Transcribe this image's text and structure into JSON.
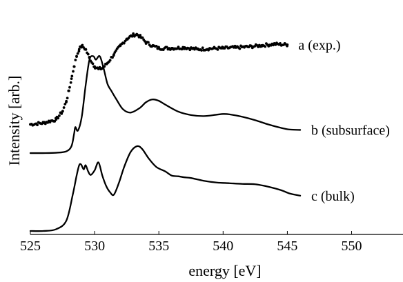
{
  "chart_data": {
    "type": "line",
    "title": "",
    "xlabel": "energy [eV]",
    "ylabel": "Intensity [arb.]",
    "xlim": [
      525,
      554
    ],
    "x_ticks": [
      525,
      530,
      535,
      540,
      545,
      550
    ],
    "x_tick_labels": [
      "525",
      "530",
      "535",
      "540",
      "545",
      "550"
    ],
    "y_ticks_shown": false,
    "grid": false,
    "legend": "none",
    "series": [
      {
        "label": "a (exp.)",
        "style": "dots",
        "color": "#000000",
        "x": [
          525.0,
          526.0,
          527.0,
          527.5,
          527.8,
          528.0,
          528.2,
          528.4,
          528.6,
          528.8,
          529.0,
          529.3,
          529.6,
          530.0,
          530.3,
          530.6,
          531.0,
          531.5,
          532.0,
          532.5,
          533.0,
          533.3,
          533.6,
          534.0,
          534.5,
          535.0,
          536.0,
          537.0,
          538.0,
          539.0,
          540.0,
          541.0,
          542.0,
          543.0,
          544.0,
          545.0
        ],
        "y": [
          3.08,
          3.12,
          3.22,
          3.45,
          3.75,
          4.05,
          4.4,
          4.75,
          5.05,
          5.25,
          5.35,
          5.25,
          5.0,
          4.75,
          4.68,
          4.7,
          4.85,
          5.1,
          5.35,
          5.55,
          5.66,
          5.68,
          5.6,
          5.45,
          5.35,
          5.28,
          5.28,
          5.3,
          5.25,
          5.27,
          5.28,
          5.3,
          5.32,
          5.36,
          5.4,
          5.38
        ]
      },
      {
        "label": "b (subsurface)",
        "style": "line",
        "color": "#000000",
        "x": [
          525.0,
          526.0,
          527.0,
          527.8,
          528.2,
          528.4,
          528.5,
          528.7,
          529.0,
          529.3,
          529.6,
          529.9,
          530.1,
          530.4,
          530.7,
          531.0,
          531.3,
          531.7,
          532.2,
          532.8,
          533.5,
          534.0,
          534.5,
          535.0,
          535.5,
          536.5,
          537.5,
          538.5,
          539.5,
          540.0,
          540.5,
          541.5,
          542.5,
          543.5,
          544.5,
          545.2,
          546.0
        ],
        "y": [
          2.25,
          2.25,
          2.26,
          2.3,
          2.45,
          2.8,
          3.0,
          2.9,
          3.3,
          4.2,
          4.95,
          5.05,
          4.95,
          5.05,
          4.7,
          4.25,
          4.05,
          3.8,
          3.52,
          3.42,
          3.55,
          3.72,
          3.8,
          3.76,
          3.65,
          3.45,
          3.35,
          3.32,
          3.36,
          3.38,
          3.37,
          3.3,
          3.2,
          3.08,
          2.98,
          2.93,
          2.92
        ]
      },
      {
        "label": "c (bulk)",
        "style": "line",
        "color": "#000000",
        "x": [
          525.0,
          526.0,
          527.0,
          527.8,
          528.3,
          528.6,
          528.8,
          528.95,
          529.15,
          529.3,
          529.5,
          529.7,
          530.0,
          530.3,
          530.6,
          530.9,
          531.2,
          531.5,
          531.9,
          532.3,
          532.8,
          533.3,
          533.7,
          534.2,
          534.8,
          535.5,
          536.0,
          536.5,
          537.0,
          537.5,
          538.5,
          539.5,
          540.5,
          541.5,
          542.5,
          543.5,
          544.5,
          545.2,
          546.0
        ],
        "y": [
          0.0,
          0.0,
          0.05,
          0.3,
          1.05,
          1.6,
          1.9,
          1.92,
          1.78,
          1.9,
          1.72,
          1.62,
          1.75,
          1.98,
          1.6,
          1.3,
          1.12,
          1.05,
          1.4,
          1.85,
          2.28,
          2.45,
          2.37,
          2.1,
          1.85,
          1.72,
          1.6,
          1.58,
          1.55,
          1.53,
          1.45,
          1.4,
          1.38,
          1.36,
          1.35,
          1.28,
          1.18,
          1.08,
          1.02
        ]
      }
    ]
  }
}
